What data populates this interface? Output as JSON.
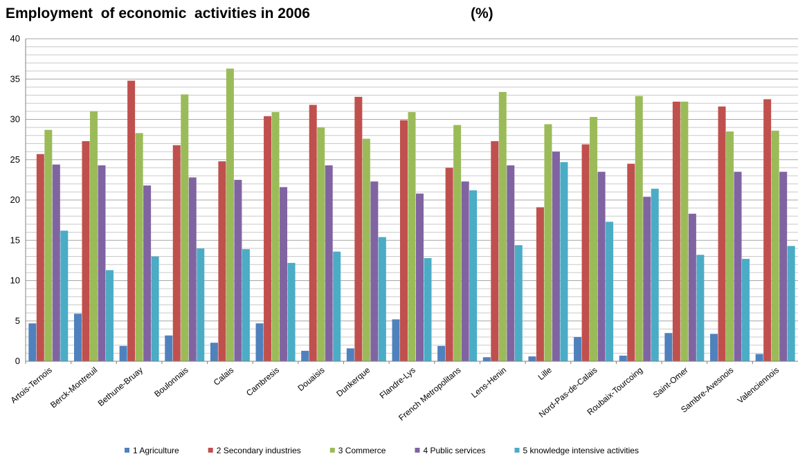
{
  "chart_data": {
    "type": "bar",
    "title": "Employment  of economic  activities in 2006",
    "unit_label": "(%)",
    "ylim": [
      0,
      40
    ],
    "y_ticks": [
      "0",
      "5",
      "10",
      "15",
      "20",
      "25",
      "30",
      "35",
      "40"
    ],
    "grid": true,
    "legend_position": "bottom",
    "categories": [
      "Artois-Ternois",
      "Berck-Montreuil",
      "Bethune-Bruay",
      "Boulonnais",
      "Calais",
      "Cambresis",
      "Douaisis",
      "Dunkerque",
      "Flandre-Lys",
      "French Metropolitans",
      "Lens-Henin",
      "Lille",
      "Nord-Pas-de-Calais",
      "Roubaix-Tourcoing",
      "Saint-Omer",
      "Sambre-Avesnois",
      "Valenciennois"
    ],
    "series": [
      {
        "name": "1 Agriculture",
        "color": "#4F81BD",
        "values": [
          4.7,
          5.9,
          1.9,
          3.2,
          2.3,
          4.7,
          1.3,
          1.6,
          5.2,
          1.9,
          0.5,
          0.6,
          3.0,
          0.7,
          3.5,
          3.4,
          0.9
        ]
      },
      {
        "name": "2 Secondary industries",
        "color": "#C0504D",
        "values": [
          25.7,
          27.3,
          34.8,
          26.8,
          24.8,
          30.4,
          31.8,
          32.8,
          29.9,
          24.0,
          27.3,
          19.1,
          26.9,
          24.5,
          32.2,
          31.6,
          32.5
        ]
      },
      {
        "name": "3 Commerce",
        "color": "#9BBB59",
        "values": [
          28.7,
          31.0,
          28.3,
          33.1,
          36.3,
          30.9,
          29.0,
          27.6,
          30.9,
          29.3,
          33.4,
          29.4,
          30.3,
          32.9,
          32.2,
          28.5,
          28.6
        ]
      },
      {
        "name": "4 Public services",
        "color": "#8064A2",
        "values": [
          24.4,
          24.3,
          21.8,
          22.8,
          22.5,
          21.6,
          24.3,
          22.3,
          20.8,
          22.3,
          24.3,
          26.0,
          23.5,
          20.4,
          18.3,
          23.5,
          23.5
        ]
      },
      {
        "name": "5 knowledge intensive activities",
        "color": "#4BACC6",
        "values": [
          16.2,
          11.3,
          13.0,
          14.0,
          13.9,
          12.2,
          13.6,
          15.4,
          12.8,
          21.2,
          14.4,
          24.7,
          17.3,
          21.4,
          13.2,
          12.7,
          14.3
        ]
      }
    ]
  }
}
